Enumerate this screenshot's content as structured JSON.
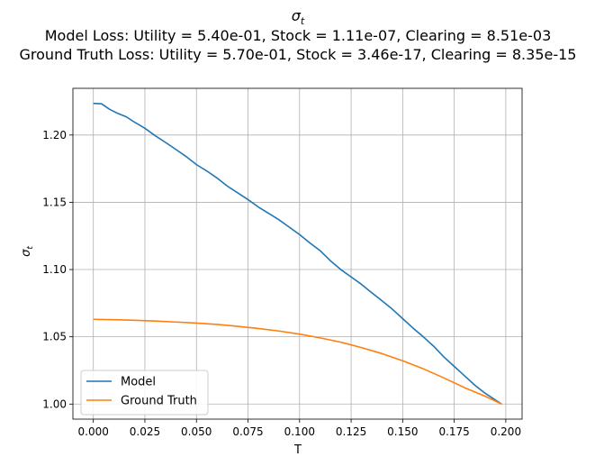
{
  "chart_data": {
    "type": "line",
    "title": "σ_t",
    "subtitle_lines": [
      "Model Loss: Utility = 5.40e-01, Stock = 1.11e-07, Clearing = 8.51e-03",
      "Ground Truth Loss: Utility = 5.70e-01, Stock = 3.46e-17, Clearing = 8.35e-15"
    ],
    "xlabel": "T",
    "ylabel": "σ_t",
    "xlim": [
      -0.0099,
      0.2079
    ],
    "ylim": [
      0.9888,
      1.2347
    ],
    "xticks": [
      0.0,
      0.025,
      0.05,
      0.075,
      0.1,
      0.125,
      0.15,
      0.175,
      0.2
    ],
    "xtick_labels": [
      "0.000",
      "0.025",
      "0.050",
      "0.075",
      "0.100",
      "0.125",
      "0.150",
      "0.175",
      "0.200"
    ],
    "yticks": [
      1.0,
      1.05,
      1.1,
      1.15,
      1.2
    ],
    "ytick_labels": [
      "1.00",
      "1.05",
      "1.10",
      "1.15",
      "1.20"
    ],
    "grid": true,
    "legend_position": "lower-left",
    "series": [
      {
        "name": "Model",
        "color": "#1f77b4",
        "x": [
          0.0,
          0.004,
          0.008,
          0.012,
          0.016,
          0.02,
          0.025,
          0.03,
          0.035,
          0.04,
          0.045,
          0.05,
          0.055,
          0.06,
          0.065,
          0.07,
          0.075,
          0.08,
          0.085,
          0.09,
          0.095,
          0.1,
          0.105,
          0.11,
          0.115,
          0.12,
          0.125,
          0.13,
          0.135,
          0.14,
          0.145,
          0.15,
          0.155,
          0.16,
          0.165,
          0.17,
          0.175,
          0.18,
          0.185,
          0.19,
          0.198
        ],
        "y": [
          1.2235,
          1.2232,
          1.219,
          1.216,
          1.2135,
          1.2095,
          1.205,
          1.1995,
          1.1945,
          1.1893,
          1.184,
          1.178,
          1.1733,
          1.168,
          1.162,
          1.157,
          1.152,
          1.1465,
          1.1418,
          1.137,
          1.1315,
          1.126,
          1.1198,
          1.114,
          1.1065,
          1.1,
          1.0945,
          1.089,
          1.0828,
          1.0767,
          1.0705,
          1.0635,
          1.0565,
          1.05,
          1.043,
          1.035,
          1.028,
          1.021,
          1.014,
          1.008,
          1.0
        ]
      },
      {
        "name": "Ground Truth",
        "color": "#ff7f0e",
        "x": [
          0.0,
          0.01,
          0.02,
          0.03,
          0.04,
          0.05,
          0.06,
          0.07,
          0.08,
          0.09,
          0.1,
          0.11,
          0.12,
          0.13,
          0.14,
          0.15,
          0.16,
          0.17,
          0.18,
          0.19,
          0.198
        ],
        "y": [
          1.063,
          1.0627,
          1.0623,
          1.0617,
          1.061,
          1.0602,
          1.0592,
          1.0578,
          1.0562,
          1.0543,
          1.052,
          1.0492,
          1.046,
          1.042,
          1.0375,
          1.0322,
          1.0262,
          1.0194,
          1.0122,
          1.0058,
          1.0
        ]
      }
    ]
  }
}
